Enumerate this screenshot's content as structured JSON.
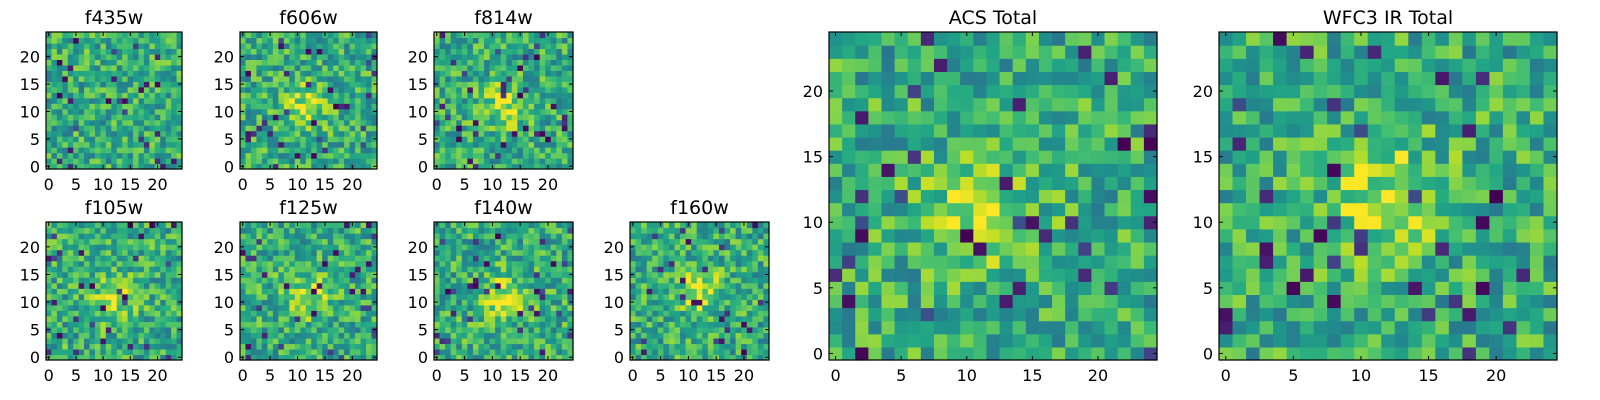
{
  "chart_data": [
    {
      "type": "heatmap",
      "title": "f435w",
      "x_ticks": [
        0,
        5,
        10,
        15,
        20
      ],
      "y_ticks": [
        0,
        5,
        10,
        15,
        20
      ],
      "xlim": [
        -0.5,
        24.5
      ],
      "ylim": [
        -0.5,
        24.5
      ],
      "colormap": "viridis",
      "grid": false,
      "peak_center": null
    },
    {
      "type": "heatmap",
      "title": "f606w",
      "x_ticks": [
        0,
        5,
        10,
        15,
        20
      ],
      "y_ticks": [
        0,
        5,
        10,
        15,
        20
      ],
      "xlim": [
        -0.5,
        24.5
      ],
      "ylim": [
        -0.5,
        24.5
      ],
      "colormap": "viridis",
      "grid": false,
      "peak_center": [
        11,
        11
      ]
    },
    {
      "type": "heatmap",
      "title": "f814w",
      "x_ticks": [
        0,
        5,
        10,
        15,
        20
      ],
      "y_ticks": [
        0,
        5,
        10,
        15,
        20
      ],
      "xlim": [
        -0.5,
        24.5
      ],
      "ylim": [
        -0.5,
        24.5
      ],
      "colormap": "viridis",
      "grid": false,
      "peak_center": [
        12,
        11
      ]
    },
    {
      "type": "heatmap",
      "title": "f105w",
      "x_ticks": [
        0,
        5,
        10,
        15,
        20
      ],
      "y_ticks": [
        0,
        5,
        10,
        15,
        20
      ],
      "xlim": [
        -0.5,
        24.5
      ],
      "ylim": [
        -0.5,
        24.5
      ],
      "colormap": "viridis",
      "grid": false,
      "peak_center": [
        12,
        11
      ]
    },
    {
      "type": "heatmap",
      "title": "f125w",
      "x_ticks": [
        0,
        5,
        10,
        15,
        20
      ],
      "y_ticks": [
        0,
        5,
        10,
        15,
        20
      ],
      "xlim": [
        -0.5,
        24.5
      ],
      "ylim": [
        -0.5,
        24.5
      ],
      "colormap": "viridis",
      "grid": false,
      "peak_center": [
        12,
        11
      ]
    },
    {
      "type": "heatmap",
      "title": "f140w",
      "x_ticks": [
        0,
        5,
        10,
        15,
        20
      ],
      "y_ticks": [
        0,
        5,
        10,
        15,
        20
      ],
      "xlim": [
        -0.5,
        24.5
      ],
      "ylim": [
        -0.5,
        24.5
      ],
      "colormap": "viridis",
      "grid": false,
      "peak_center": [
        12,
        11
      ]
    },
    {
      "type": "heatmap",
      "title": "f160w",
      "x_ticks": [
        0,
        5,
        10,
        15,
        20
      ],
      "y_ticks": [
        0,
        5,
        10,
        15,
        20
      ],
      "xlim": [
        -0.5,
        24.5
      ],
      "ylim": [
        -0.5,
        24.5
      ],
      "colormap": "viridis",
      "grid": false,
      "peak_center": [
        12,
        12
      ]
    },
    {
      "type": "heatmap",
      "title": "ACS Total",
      "x_ticks": [
        0,
        5,
        10,
        15,
        20
      ],
      "y_ticks": [
        0,
        5,
        10,
        15,
        20
      ],
      "xlim": [
        -0.5,
        24.5
      ],
      "ylim": [
        -0.5,
        24.5
      ],
      "colormap": "viridis",
      "grid": false,
      "peak_center": [
        11,
        11
      ]
    },
    {
      "type": "heatmap",
      "title": "WFC3 IR Total",
      "x_ticks": [
        0,
        5,
        10,
        15,
        20
      ],
      "y_ticks": [
        0,
        5,
        10,
        15,
        20
      ],
      "xlim": [
        -0.5,
        24.5
      ],
      "ylim": [
        -0.5,
        24.5
      ],
      "colormap": "viridis",
      "grid": false,
      "peak_center": [
        12,
        12
      ]
    }
  ]
}
